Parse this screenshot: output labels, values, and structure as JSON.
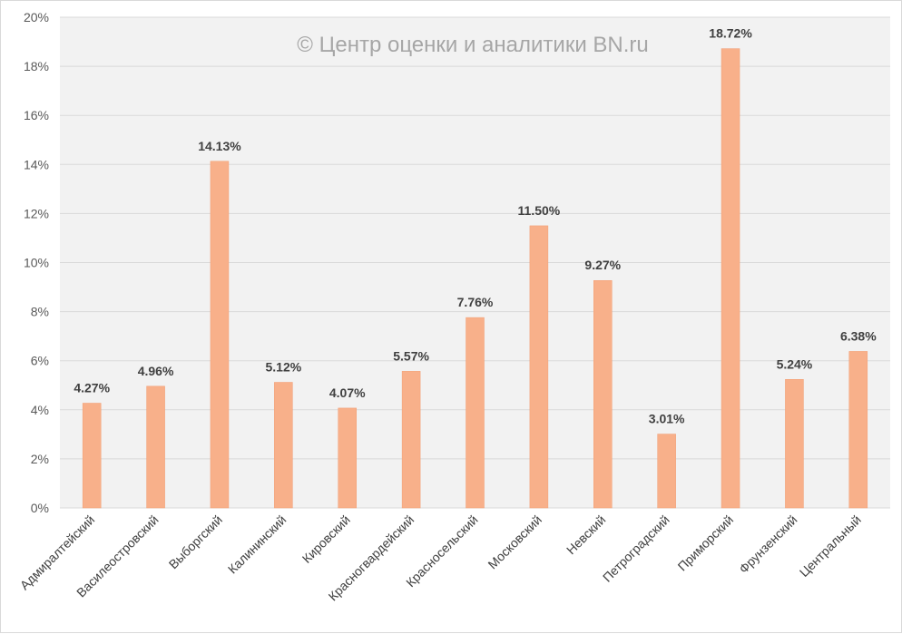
{
  "chart_data": {
    "type": "bar",
    "watermark": "© Центр оценки и аналитики BN.ru",
    "categories": [
      "Адмиралтейский",
      "Василеостровский",
      "Выборгский",
      "Калининский",
      "Кировский",
      "Красногвардейский",
      "Красносельский",
      "Московский",
      "Невский",
      "Петроградский",
      "Приморский",
      "Фрунзенский",
      "Центральный"
    ],
    "values": [
      4.27,
      4.96,
      14.13,
      5.12,
      4.07,
      5.57,
      7.76,
      11.5,
      9.27,
      3.01,
      18.72,
      5.24,
      6.38
    ],
    "data_labels": [
      "4.27%",
      "4.96%",
      "14.13%",
      "5.12%",
      "4.07%",
      "5.57%",
      "7.76%",
      "11.50%",
      "9.27%",
      "3.01%",
      "18.72%",
      "5.24%",
      "6.38%"
    ],
    "yticks": [
      0,
      2,
      4,
      6,
      8,
      10,
      12,
      14,
      16,
      18,
      20
    ],
    "ytick_labels": [
      "0%",
      "2%",
      "4%",
      "6%",
      "8%",
      "10%",
      "12%",
      "14%",
      "16%",
      "18%",
      "20%"
    ],
    "ylim": [
      0,
      20
    ],
    "grid": true,
    "legend": "none",
    "colors": {
      "bar": "#f8b08a",
      "bar_edge": "#f29d72",
      "grid": "#d9d9d9",
      "plot_bg": "#f2f2f2"
    }
  }
}
